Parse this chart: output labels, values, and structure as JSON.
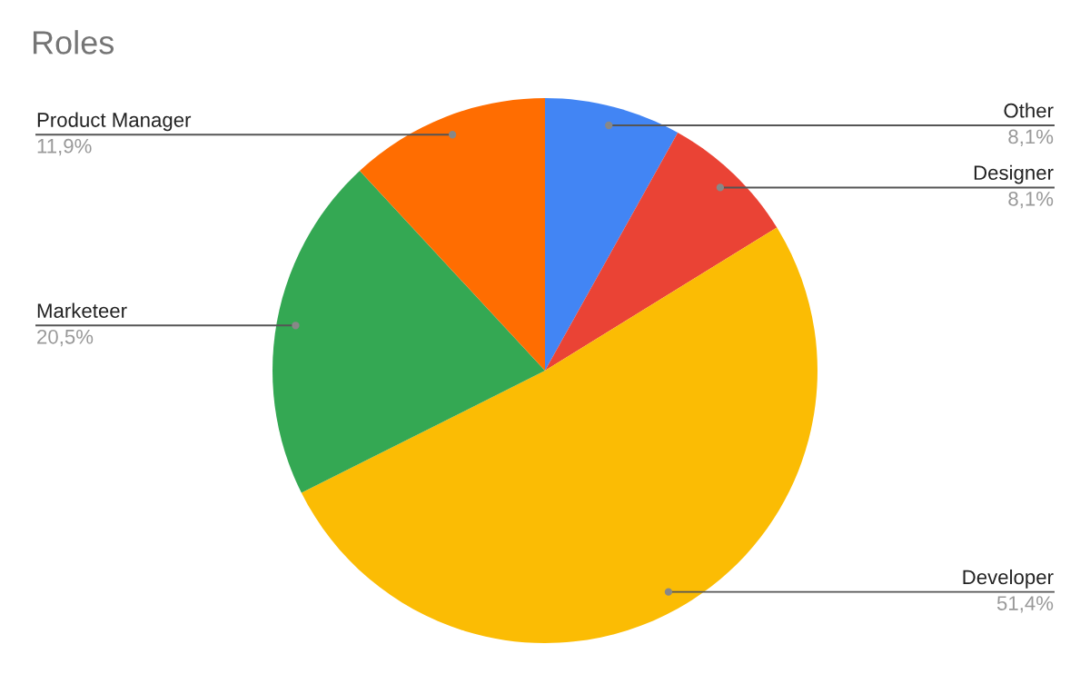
{
  "chart_data": {
    "type": "pie",
    "title": "Roles",
    "categories": [
      "Other",
      "Designer",
      "Developer",
      "Marketeer",
      "Product Manager"
    ],
    "values": [
      8.1,
      8.1,
      51.4,
      20.5,
      11.9
    ],
    "value_labels": [
      "8,1%",
      "8,1%",
      "51,4%",
      "20,5%",
      "11,9%"
    ],
    "colors": [
      "#4285f4",
      "#ea4335",
      "#fbbc04",
      "#34a853",
      "#ff6d01"
    ],
    "legend": false
  }
}
